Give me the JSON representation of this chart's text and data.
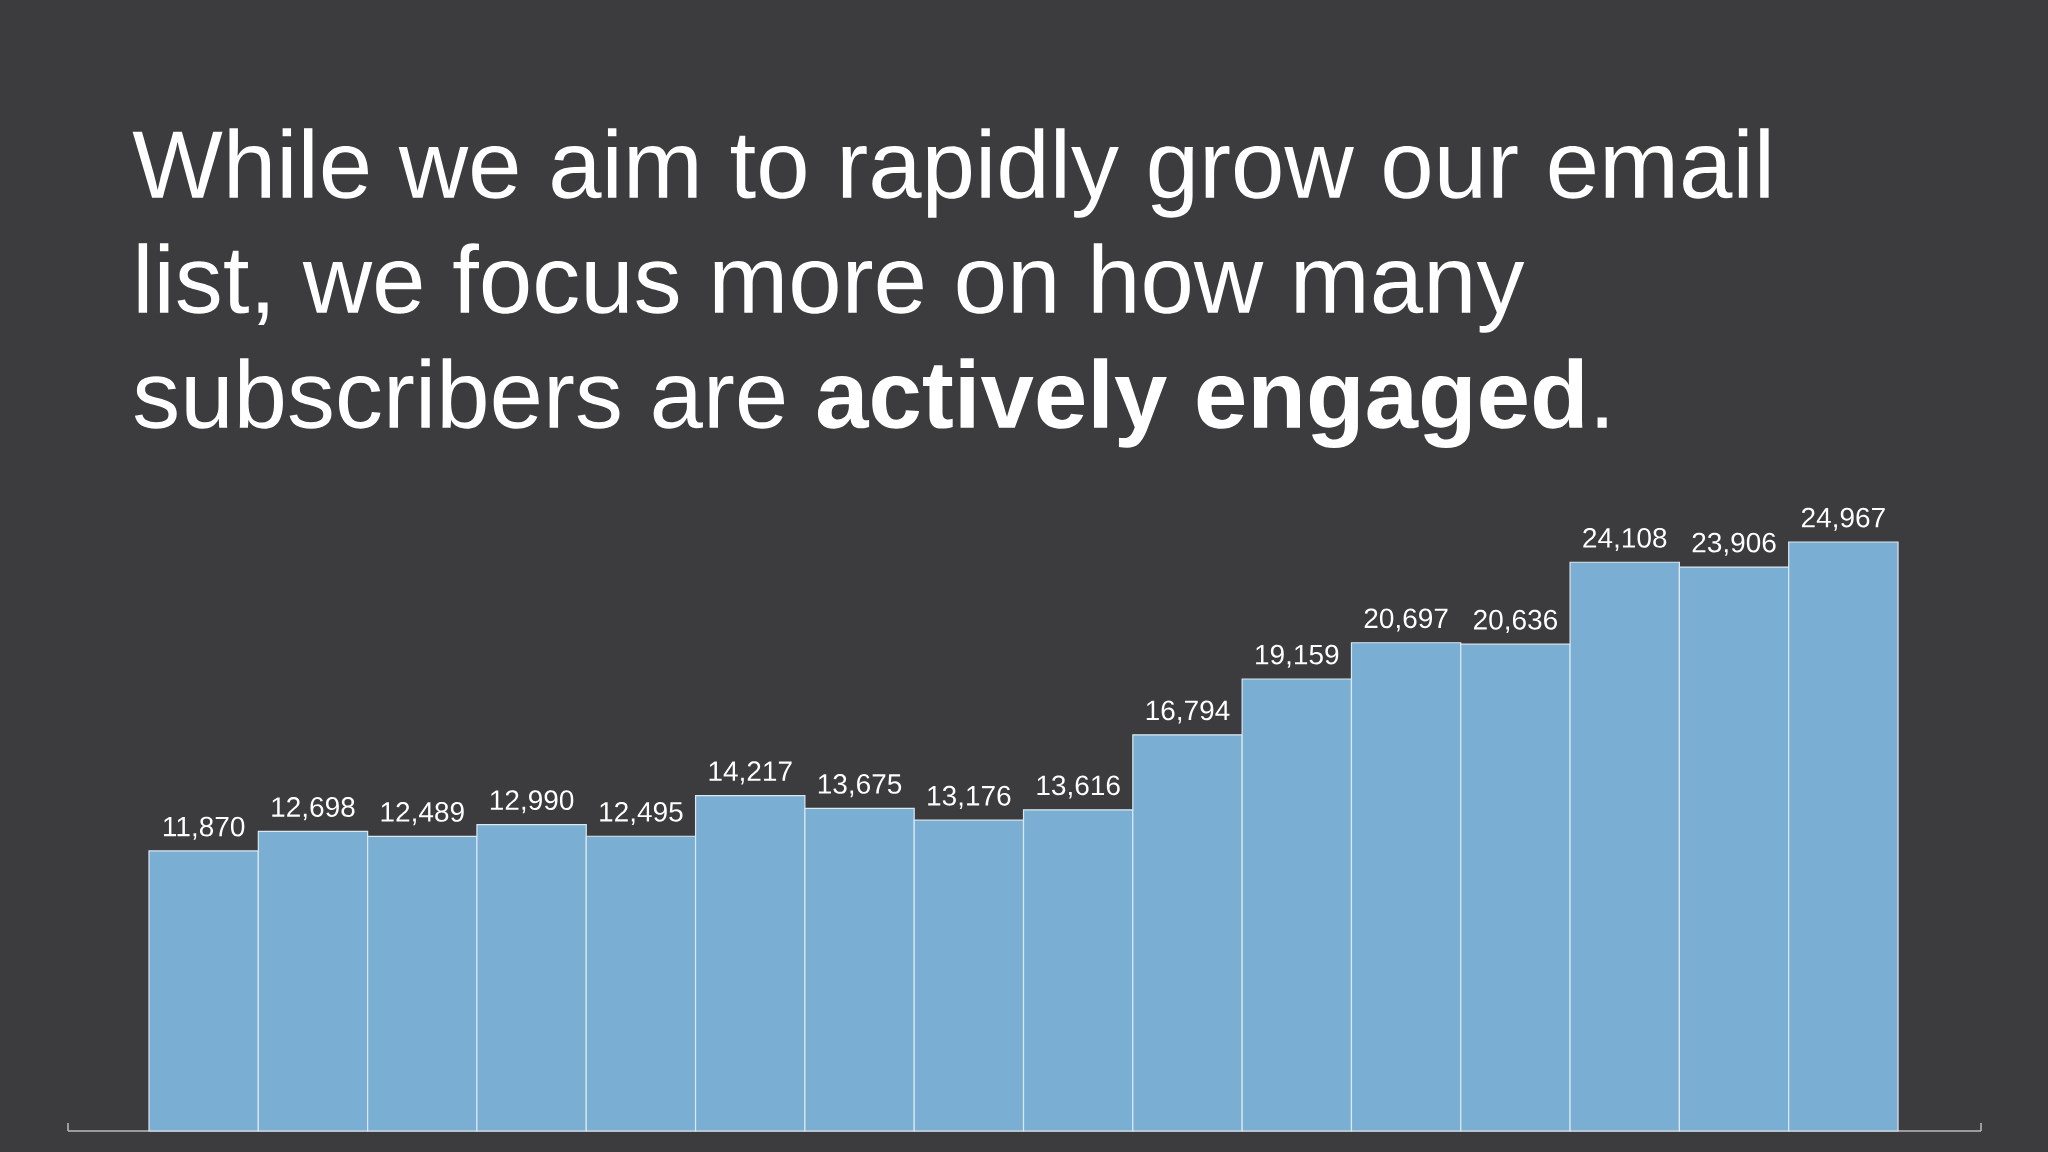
{
  "chart_data": {
    "type": "bar",
    "title": "While we aim to rapidly grow our email list, we focus more on how many subscribers are **actively engaged**.",
    "categories": [
      null,
      null,
      null,
      null,
      null,
      null,
      null,
      null,
      null,
      null,
      null,
      null,
      null,
      null,
      null,
      null
    ],
    "values": [
      11870,
      12698,
      12489,
      12990,
      12495,
      14217,
      13675,
      13176,
      13616,
      16794,
      19159,
      20697,
      20636,
      24108,
      23906,
      24967
    ],
    "value_labels": [
      "11,870",
      "12,698",
      "12,489",
      "12,990",
      "12,495",
      "14,217",
      "13,675",
      "13,176",
      "13,616",
      "16,794",
      "19,159",
      "20,697",
      "20,636",
      "24,108",
      "23,906",
      "24,967"
    ],
    "color": "#7aaed2"
  }
}
